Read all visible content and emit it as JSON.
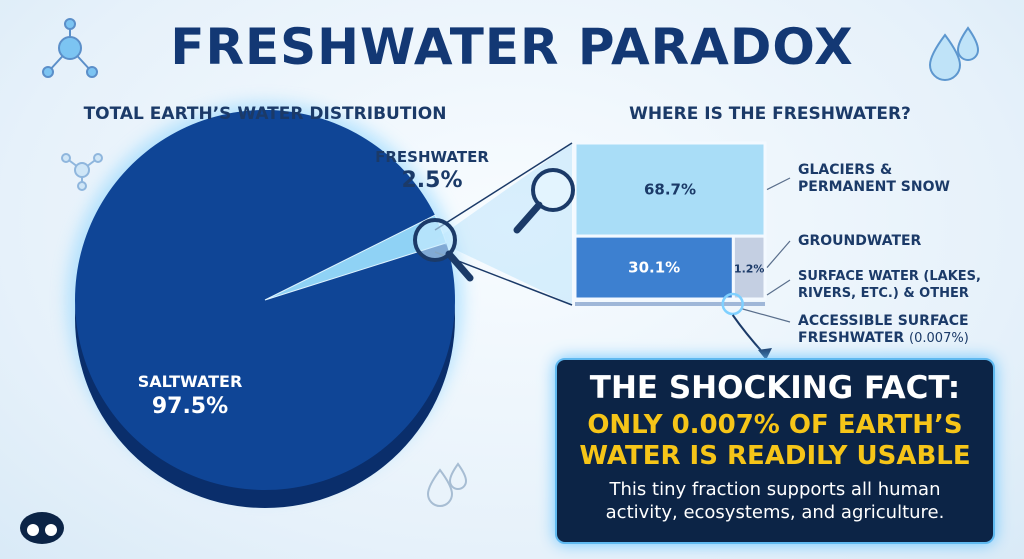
{
  "title": "FRESHWATER PARADOX",
  "chart_data": [
    {
      "type": "pie",
      "title": "TOTAL EARTH’S WATER DISTRIBUTION",
      "categories": [
        "SALTWATER",
        "FRESHWATER"
      ],
      "values": [
        97.5,
        2.5
      ],
      "value_labels": [
        "97.5%",
        "2.5%"
      ],
      "colors": [
        "#0f4596",
        "#8fd2f5"
      ]
    },
    {
      "type": "treemap",
      "title": "WHERE IS THE FRESHWATER?",
      "categories": [
        "GLACIERS & PERMANENT SNOW",
        "GROUNDWATER",
        "SURFACE WATER (LAKES, RIVERS, ETC.) & OTHER"
      ],
      "values": [
        68.7,
        30.1,
        1.2
      ],
      "value_labels": [
        "68.7%",
        "30.1%",
        "1.2%"
      ],
      "colors": [
        "#a9ddf7",
        "#3d80d0",
        "#c4cfe2"
      ],
      "annotation": {
        "label": "ACCESSIBLE SURFACE FRESHWATER",
        "value": 0.007,
        "value_label": "(0.007%)"
      }
    }
  ],
  "callout": {
    "heading": "THE SHOCKING FACT:",
    "highlight": "ONLY 0.007% OF EARTH’S WATER IS READILY USABLE",
    "body": "This tiny fraction supports all human activity, ecosystems, and agriculture."
  }
}
